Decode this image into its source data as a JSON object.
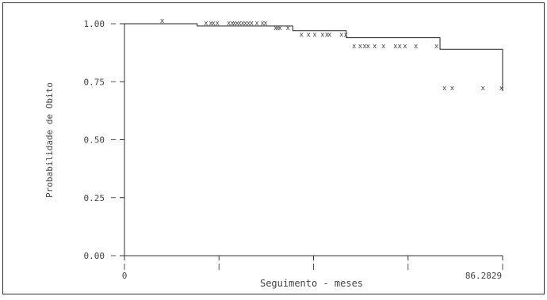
{
  "chart_data": {
    "type": "line",
    "subtype": "kaplan-meier-step",
    "title": "",
    "xlabel": "Seguimento - meses",
    "ylabel": "Probabilidade de Obito",
    "xlim": [
      0,
      86.2829
    ],
    "ylim": [
      0,
      1
    ],
    "x_tick_values": [
      0,
      21.57,
      43.14,
      64.71,
      86.2829
    ],
    "x_tick_labels": [
      "0",
      "",
      "",
      "",
      "86.2829"
    ],
    "y_tick_values": [
      0,
      0.25,
      0.5,
      0.75,
      1
    ],
    "y_tick_labels": [
      "0.00",
      "0.25",
      "0.50",
      "0.75",
      "1.00"
    ],
    "grid": false,
    "series": [
      {
        "x": [
          0,
          15.7,
          16.6,
          33.0,
          38.4,
          50.6,
          72.0,
          86.2829
        ],
        "y": [
          1.0,
          1.0,
          0.99,
          0.99,
          0.97,
          0.94,
          0.89,
          0.71
        ],
        "censored": [
          {
            "x": 8.6,
            "y": 1.0
          },
          {
            "x": 18.6,
            "y": 0.99
          },
          {
            "x": 19.7,
            "y": 0.99
          },
          {
            "x": 20.3,
            "y": 0.99
          },
          {
            "x": 21.2,
            "y": 0.99
          },
          {
            "x": 23.8,
            "y": 0.99
          },
          {
            "x": 24.6,
            "y": 0.99
          },
          {
            "x": 25.1,
            "y": 0.99
          },
          {
            "x": 25.7,
            "y": 0.99
          },
          {
            "x": 26.3,
            "y": 0.99
          },
          {
            "x": 27.0,
            "y": 0.99
          },
          {
            "x": 27.6,
            "y": 0.99
          },
          {
            "x": 28.3,
            "y": 0.99
          },
          {
            "x": 29.0,
            "y": 0.99
          },
          {
            "x": 30.2,
            "y": 0.99
          },
          {
            "x": 31.5,
            "y": 0.99
          },
          {
            "x": 32.2,
            "y": 0.99
          },
          {
            "x": 34.5,
            "y": 0.97
          },
          {
            "x": 35.0,
            "y": 0.97
          },
          {
            "x": 35.5,
            "y": 0.97
          },
          {
            "x": 37.3,
            "y": 0.97
          },
          {
            "x": 40.4,
            "y": 0.94
          },
          {
            "x": 42.0,
            "y": 0.94
          },
          {
            "x": 43.4,
            "y": 0.94
          },
          {
            "x": 45.2,
            "y": 0.94
          },
          {
            "x": 46.2,
            "y": 0.94
          },
          {
            "x": 46.8,
            "y": 0.94
          },
          {
            "x": 49.5,
            "y": 0.94
          },
          {
            "x": 50.5,
            "y": 0.94
          },
          {
            "x": 52.4,
            "y": 0.89
          },
          {
            "x": 53.8,
            "y": 0.89
          },
          {
            "x": 54.8,
            "y": 0.89
          },
          {
            "x": 55.6,
            "y": 0.89
          },
          {
            "x": 57.1,
            "y": 0.89
          },
          {
            "x": 59.1,
            "y": 0.89
          },
          {
            "x": 61.8,
            "y": 0.89
          },
          {
            "x": 62.8,
            "y": 0.89
          },
          {
            "x": 64.0,
            "y": 0.89
          },
          {
            "x": 66.5,
            "y": 0.89
          },
          {
            "x": 71.2,
            "y": 0.89
          },
          {
            "x": 73.0,
            "y": 0.71
          },
          {
            "x": 74.8,
            "y": 0.71
          },
          {
            "x": 81.8,
            "y": 0.71
          },
          {
            "x": 86.0,
            "y": 0.71
          }
        ]
      }
    ]
  }
}
